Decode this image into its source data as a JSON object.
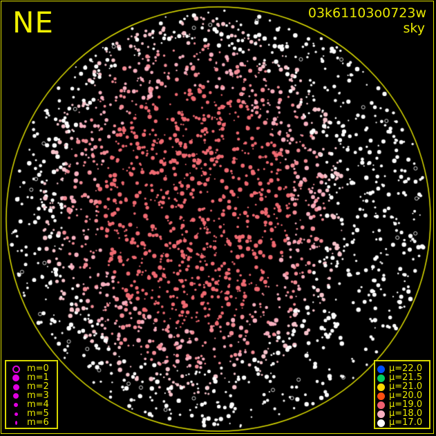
{
  "header": {
    "direction": "NE",
    "image_id": "03k61103o0723w",
    "map_type": "sky"
  },
  "magnitude_legend": {
    "symbol_color": "#e000e0",
    "items": [
      "m=0",
      "m=1",
      "m=2",
      "m=3",
      "m=4",
      "m=5",
      "m=6"
    ]
  },
  "sky_legend": {
    "items": [
      {
        "label": "μ=22.0",
        "color": "#0050ff"
      },
      {
        "label": "μ=21.5",
        "color": "#00d060"
      },
      {
        "label": "μ=21.0",
        "color": "#ffd800"
      },
      {
        "label": "μ=20.0",
        "color": "#ff5010"
      },
      {
        "label": "μ=19.0",
        "color": "#f06070"
      },
      {
        "label": "μ=18.0",
        "color": "#f8b0c0"
      },
      {
        "label": "μ=17.0",
        "color": "#ffffff"
      }
    ]
  },
  "colors": {
    "frame": "#e0e000",
    "horizon": "#e0e000",
    "background": "#000000"
  }
}
